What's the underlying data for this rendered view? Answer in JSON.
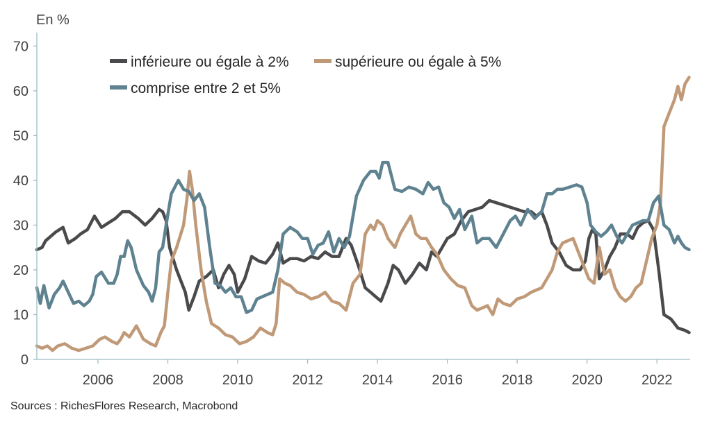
{
  "chart_data": {
    "type": "line",
    "ylabel": "En %",
    "source": "Sources : RichesFlores Research, Macrobond",
    "ylim": [
      0,
      73
    ],
    "xlim": [
      2004.25,
      2022.95
    ],
    "yticks": [
      0,
      10,
      20,
      30,
      40,
      50,
      60,
      70
    ],
    "xticks": [
      2006,
      2008,
      2010,
      2012,
      2014,
      2016,
      2018,
      2020,
      2022
    ],
    "legend_position": "top-left",
    "grid": false,
    "series": [
      {
        "name": "inférieure ou égale à 2%",
        "color": "#4a4a4d",
        "x": [
          2004.25,
          2004.4,
          2004.5,
          2004.65,
          2004.8,
          2005.0,
          2005.15,
          2005.35,
          2005.5,
          2005.7,
          2005.9,
          2006.1,
          2006.3,
          2006.5,
          2006.7,
          2006.9,
          2007.15,
          2007.35,
          2007.55,
          2007.75,
          2007.85,
          2007.95,
          2008.05,
          2008.25,
          2008.4,
          2008.5,
          2008.6,
          2008.75,
          2008.9,
          2009.1,
          2009.3,
          2009.45,
          2009.6,
          2009.75,
          2009.9,
          2010.0,
          2010.2,
          2010.4,
          2010.6,
          2010.8,
          2011.0,
          2011.15,
          2011.3,
          2011.5,
          2011.7,
          2011.9,
          2012.1,
          2012.3,
          2012.5,
          2012.7,
          2012.9,
          2013.1,
          2013.25,
          2013.45,
          2013.65,
          2013.8,
          2013.95,
          2014.1,
          2014.3,
          2014.45,
          2014.6,
          2014.8,
          2015.0,
          2015.2,
          2015.4,
          2015.55,
          2015.7,
          2015.85,
          2016.0,
          2016.2,
          2016.4,
          2016.6,
          2016.8,
          2017.0,
          2017.2,
          2017.4,
          2017.6,
          2017.8,
          2018.0,
          2018.2,
          2018.4,
          2018.55,
          2018.7,
          2018.85,
          2019.0,
          2019.2,
          2019.4,
          2019.6,
          2019.8,
          2019.95,
          2020.05,
          2020.15,
          2020.25,
          2020.35,
          2020.5,
          2020.65,
          2020.8,
          2020.95,
          2021.15,
          2021.3,
          2021.45,
          2021.6,
          2021.75,
          2021.9,
          2022.05,
          2022.2,
          2022.4,
          2022.6,
          2022.8,
          2022.92
        ],
        "values": [
          24.5,
          25.0,
          26.5,
          27.5,
          28.5,
          29.5,
          26.0,
          27.0,
          28.0,
          29.0,
          32.0,
          29.5,
          30.5,
          31.5,
          33.0,
          33.0,
          31.5,
          30.0,
          31.5,
          33.5,
          33.0,
          31.0,
          25.0,
          20.0,
          17.0,
          15.0,
          11.0,
          14.0,
          17.5,
          18.5,
          20.0,
          16.0,
          19.0,
          21.0,
          19.0,
          15.0,
          18.0,
          23.0,
          22.0,
          21.5,
          23.5,
          26.0,
          21.5,
          22.5,
          22.5,
          22.0,
          23.0,
          22.5,
          24.0,
          23.0,
          23.0,
          27.0,
          25.5,
          21.0,
          16.0,
          15.0,
          14.0,
          13.0,
          17.0,
          21.0,
          20.0,
          17.0,
          19.0,
          21.5,
          20.0,
          24.0,
          23.0,
          25.0,
          27.0,
          28.0,
          31.0,
          33.0,
          33.5,
          34.0,
          35.5,
          35.0,
          34.5,
          34.0,
          33.5,
          33.0,
          33.0,
          32.0,
          33.0,
          30.0,
          26.0,
          24.0,
          21.0,
          20.0,
          20.0,
          22.0,
          27.0,
          29.0,
          28.0,
          18.0,
          20.0,
          23.0,
          25.0,
          28.0,
          28.0,
          27.0,
          29.5,
          30.5,
          31.0,
          29.0,
          20.0,
          10.0,
          9.0,
          7.0,
          6.5,
          6.0
        ]
      },
      {
        "name": "supérieure ou égale à 5%",
        "color": "#c09a78",
        "x": [
          2004.25,
          2004.4,
          2004.55,
          2004.7,
          2004.85,
          2005.05,
          2005.25,
          2005.45,
          2005.65,
          2005.85,
          2006.05,
          2006.2,
          2006.4,
          2006.55,
          2006.65,
          2006.75,
          2006.9,
          2007.1,
          2007.3,
          2007.5,
          2007.65,
          2007.8,
          2007.9,
          2008.0,
          2008.1,
          2008.25,
          2008.45,
          2008.55,
          2008.62,
          2008.7,
          2008.8,
          2008.95,
          2009.1,
          2009.25,
          2009.45,
          2009.65,
          2009.85,
          2010.05,
          2010.25,
          2010.45,
          2010.65,
          2010.85,
          2011.0,
          2011.1,
          2011.2,
          2011.35,
          2011.5,
          2011.7,
          2011.9,
          2012.1,
          2012.3,
          2012.5,
          2012.7,
          2012.9,
          2013.1,
          2013.3,
          2013.5,
          2013.65,
          2013.8,
          2013.9,
          2014.0,
          2014.15,
          2014.3,
          2014.5,
          2014.65,
          2014.8,
          2014.95,
          2015.1,
          2015.25,
          2015.4,
          2015.55,
          2015.7,
          2015.9,
          2016.1,
          2016.3,
          2016.5,
          2016.7,
          2016.85,
          2017.0,
          2017.15,
          2017.3,
          2017.45,
          2017.6,
          2017.8,
          2018.0,
          2018.2,
          2018.4,
          2018.55,
          2018.7,
          2018.85,
          2019.0,
          2019.15,
          2019.3,
          2019.45,
          2019.6,
          2019.75,
          2019.9,
          2020.05,
          2020.2,
          2020.35,
          2020.5,
          2020.65,
          2020.8,
          2020.95,
          2021.1,
          2021.25,
          2021.4,
          2021.55,
          2021.7,
          2021.85,
          2022.0,
          2022.1,
          2022.2,
          2022.35,
          2022.5,
          2022.6,
          2022.7,
          2022.8,
          2022.92
        ],
        "values": [
          3.0,
          2.5,
          3.0,
          2.0,
          3.0,
          3.5,
          2.5,
          2.0,
          2.5,
          3.0,
          4.5,
          5.0,
          4.0,
          3.5,
          4.5,
          6.0,
          5.0,
          7.5,
          4.5,
          3.5,
          3.0,
          6.0,
          7.5,
          15.0,
          22.0,
          25.0,
          30.0,
          36.0,
          42.0,
          38.0,
          30.0,
          20.0,
          13.0,
          8.0,
          7.0,
          5.5,
          5.0,
          3.5,
          4.0,
          5.0,
          7.0,
          6.0,
          5.5,
          8.0,
          18.0,
          17.0,
          16.5,
          15.0,
          14.5,
          13.5,
          14.0,
          15.0,
          13.0,
          12.5,
          11.0,
          17.0,
          19.0,
          28.0,
          30.0,
          29.0,
          31.0,
          30.0,
          27.0,
          25.0,
          28.0,
          30.0,
          32.0,
          28.0,
          27.0,
          27.0,
          25.0,
          23.5,
          20.0,
          18.0,
          16.5,
          16.0,
          12.0,
          11.0,
          11.5,
          12.0,
          10.0,
          13.5,
          12.5,
          12.0,
          13.5,
          14.0,
          15.0,
          15.5,
          16.0,
          18.0,
          20.0,
          24.0,
          26.0,
          26.5,
          27.0,
          24.0,
          21.0,
          18.0,
          17.0,
          25.0,
          19.0,
          20.0,
          16.0,
          14.0,
          13.0,
          14.0,
          16.0,
          17.0,
          22.0,
          27.0,
          30.0,
          35.0,
          52.0,
          55.0,
          58.0,
          61.0,
          58.0,
          61.5,
          63.0
        ]
      },
      {
        "name": "comprise entre 2 et 5%",
        "color": "#5e8290",
        "x": [
          2004.25,
          2004.35,
          2004.45,
          2004.6,
          2004.75,
          2004.9,
          2005.0,
          2005.15,
          2005.3,
          2005.45,
          2005.6,
          2005.75,
          2005.85,
          2005.95,
          2006.1,
          2006.3,
          2006.45,
          2006.55,
          2006.65,
          2006.75,
          2006.85,
          2006.95,
          2007.1,
          2007.3,
          2007.45,
          2007.55,
          2007.65,
          2007.75,
          2007.85,
          2007.95,
          2008.1,
          2008.3,
          2008.45,
          2008.6,
          2008.75,
          2008.9,
          2009.05,
          2009.2,
          2009.35,
          2009.5,
          2009.65,
          2009.8,
          2009.95,
          2010.1,
          2010.25,
          2010.4,
          2010.55,
          2010.7,
          2010.85,
          2011.0,
          2011.15,
          2011.3,
          2011.5,
          2011.7,
          2011.85,
          2012.0,
          2012.15,
          2012.3,
          2012.45,
          2012.6,
          2012.75,
          2012.9,
          2013.05,
          2013.2,
          2013.4,
          2013.6,
          2013.8,
          2013.95,
          2014.05,
          2014.15,
          2014.3,
          2014.5,
          2014.7,
          2014.9,
          2015.1,
          2015.3,
          2015.45,
          2015.6,
          2015.75,
          2015.9,
          2016.05,
          2016.2,
          2016.35,
          2016.5,
          2016.7,
          2016.85,
          2017.0,
          2017.2,
          2017.4,
          2017.6,
          2017.8,
          2017.95,
          2018.1,
          2018.3,
          2018.5,
          2018.7,
          2018.85,
          2019.0,
          2019.15,
          2019.3,
          2019.5,
          2019.7,
          2019.85,
          2020.0,
          2020.1,
          2020.25,
          2020.4,
          2020.55,
          2020.7,
          2020.85,
          2021.0,
          2021.15,
          2021.3,
          2021.45,
          2021.6,
          2021.75,
          2021.9,
          2022.05,
          2022.2,
          2022.35,
          2022.5,
          2022.6,
          2022.7,
          2022.8,
          2022.92
        ],
        "values": [
          16.0,
          12.5,
          16.5,
          11.5,
          14.5,
          16.0,
          17.5,
          15.0,
          12.5,
          13.0,
          12.0,
          13.0,
          14.5,
          18.5,
          19.5,
          17.0,
          17.0,
          19.0,
          23.0,
          23.0,
          26.5,
          25.0,
          20.0,
          16.5,
          15.0,
          13.0,
          16.0,
          24.0,
          25.0,
          30.0,
          37.0,
          40.0,
          38.0,
          37.5,
          35.5,
          37.0,
          34.0,
          25.0,
          17.0,
          16.5,
          15.0,
          16.0,
          14.0,
          14.0,
          10.5,
          11.0,
          13.5,
          14.0,
          14.5,
          15.0,
          20.0,
          28.0,
          29.5,
          28.5,
          27.0,
          27.0,
          23.5,
          25.5,
          26.0,
          28.5,
          24.0,
          27.0,
          25.0,
          27.5,
          36.5,
          40.0,
          42.0,
          42.0,
          40.5,
          44.0,
          44.0,
          38.0,
          37.5,
          38.5,
          38.0,
          37.0,
          39.5,
          38.0,
          38.5,
          35.0,
          34.0,
          31.5,
          33.5,
          29.0,
          32.0,
          26.0,
          27.0,
          27.0,
          25.0,
          28.0,
          31.0,
          32.0,
          30.0,
          33.5,
          31.5,
          33.0,
          37.0,
          37.0,
          38.0,
          38.0,
          38.5,
          39.0,
          38.5,
          35.0,
          30.0,
          28.5,
          27.5,
          28.5,
          30.0,
          27.5,
          26.0,
          28.0,
          30.0,
          30.5,
          31.0,
          31.0,
          35.0,
          36.5,
          30.0,
          29.0,
          26.0,
          27.5,
          26.0,
          25.0,
          24.5
        ]
      }
    ]
  }
}
